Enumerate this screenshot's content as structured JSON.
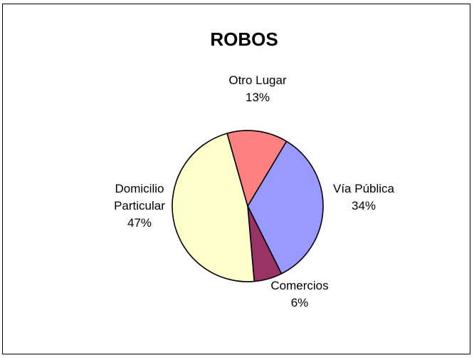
{
  "chart_data": {
    "type": "pie",
    "title": "ROBOS",
    "slices": [
      {
        "label": "Vía Pública",
        "label_lines": [
          "Vía Pública"
        ],
        "value": 34,
        "value_text": "34%",
        "color": "#9999ff"
      },
      {
        "label": "Comercios",
        "label_lines": [
          "Comercios"
        ],
        "value": 6,
        "value_text": "6%",
        "color": "#993366"
      },
      {
        "label": "Domicilio Particular",
        "label_lines": [
          "Domicilio",
          "Particular"
        ],
        "value": 47,
        "value_text": "47%",
        "color": "#ffffcc"
      },
      {
        "label": "Otro Lugar",
        "label_lines": [
          "Otro Lugar"
        ],
        "value": 13,
        "value_text": "13%",
        "color": "#ff8080"
      }
    ],
    "start_angle_deg": 31,
    "direction": "clockwise",
    "legend": "none"
  }
}
